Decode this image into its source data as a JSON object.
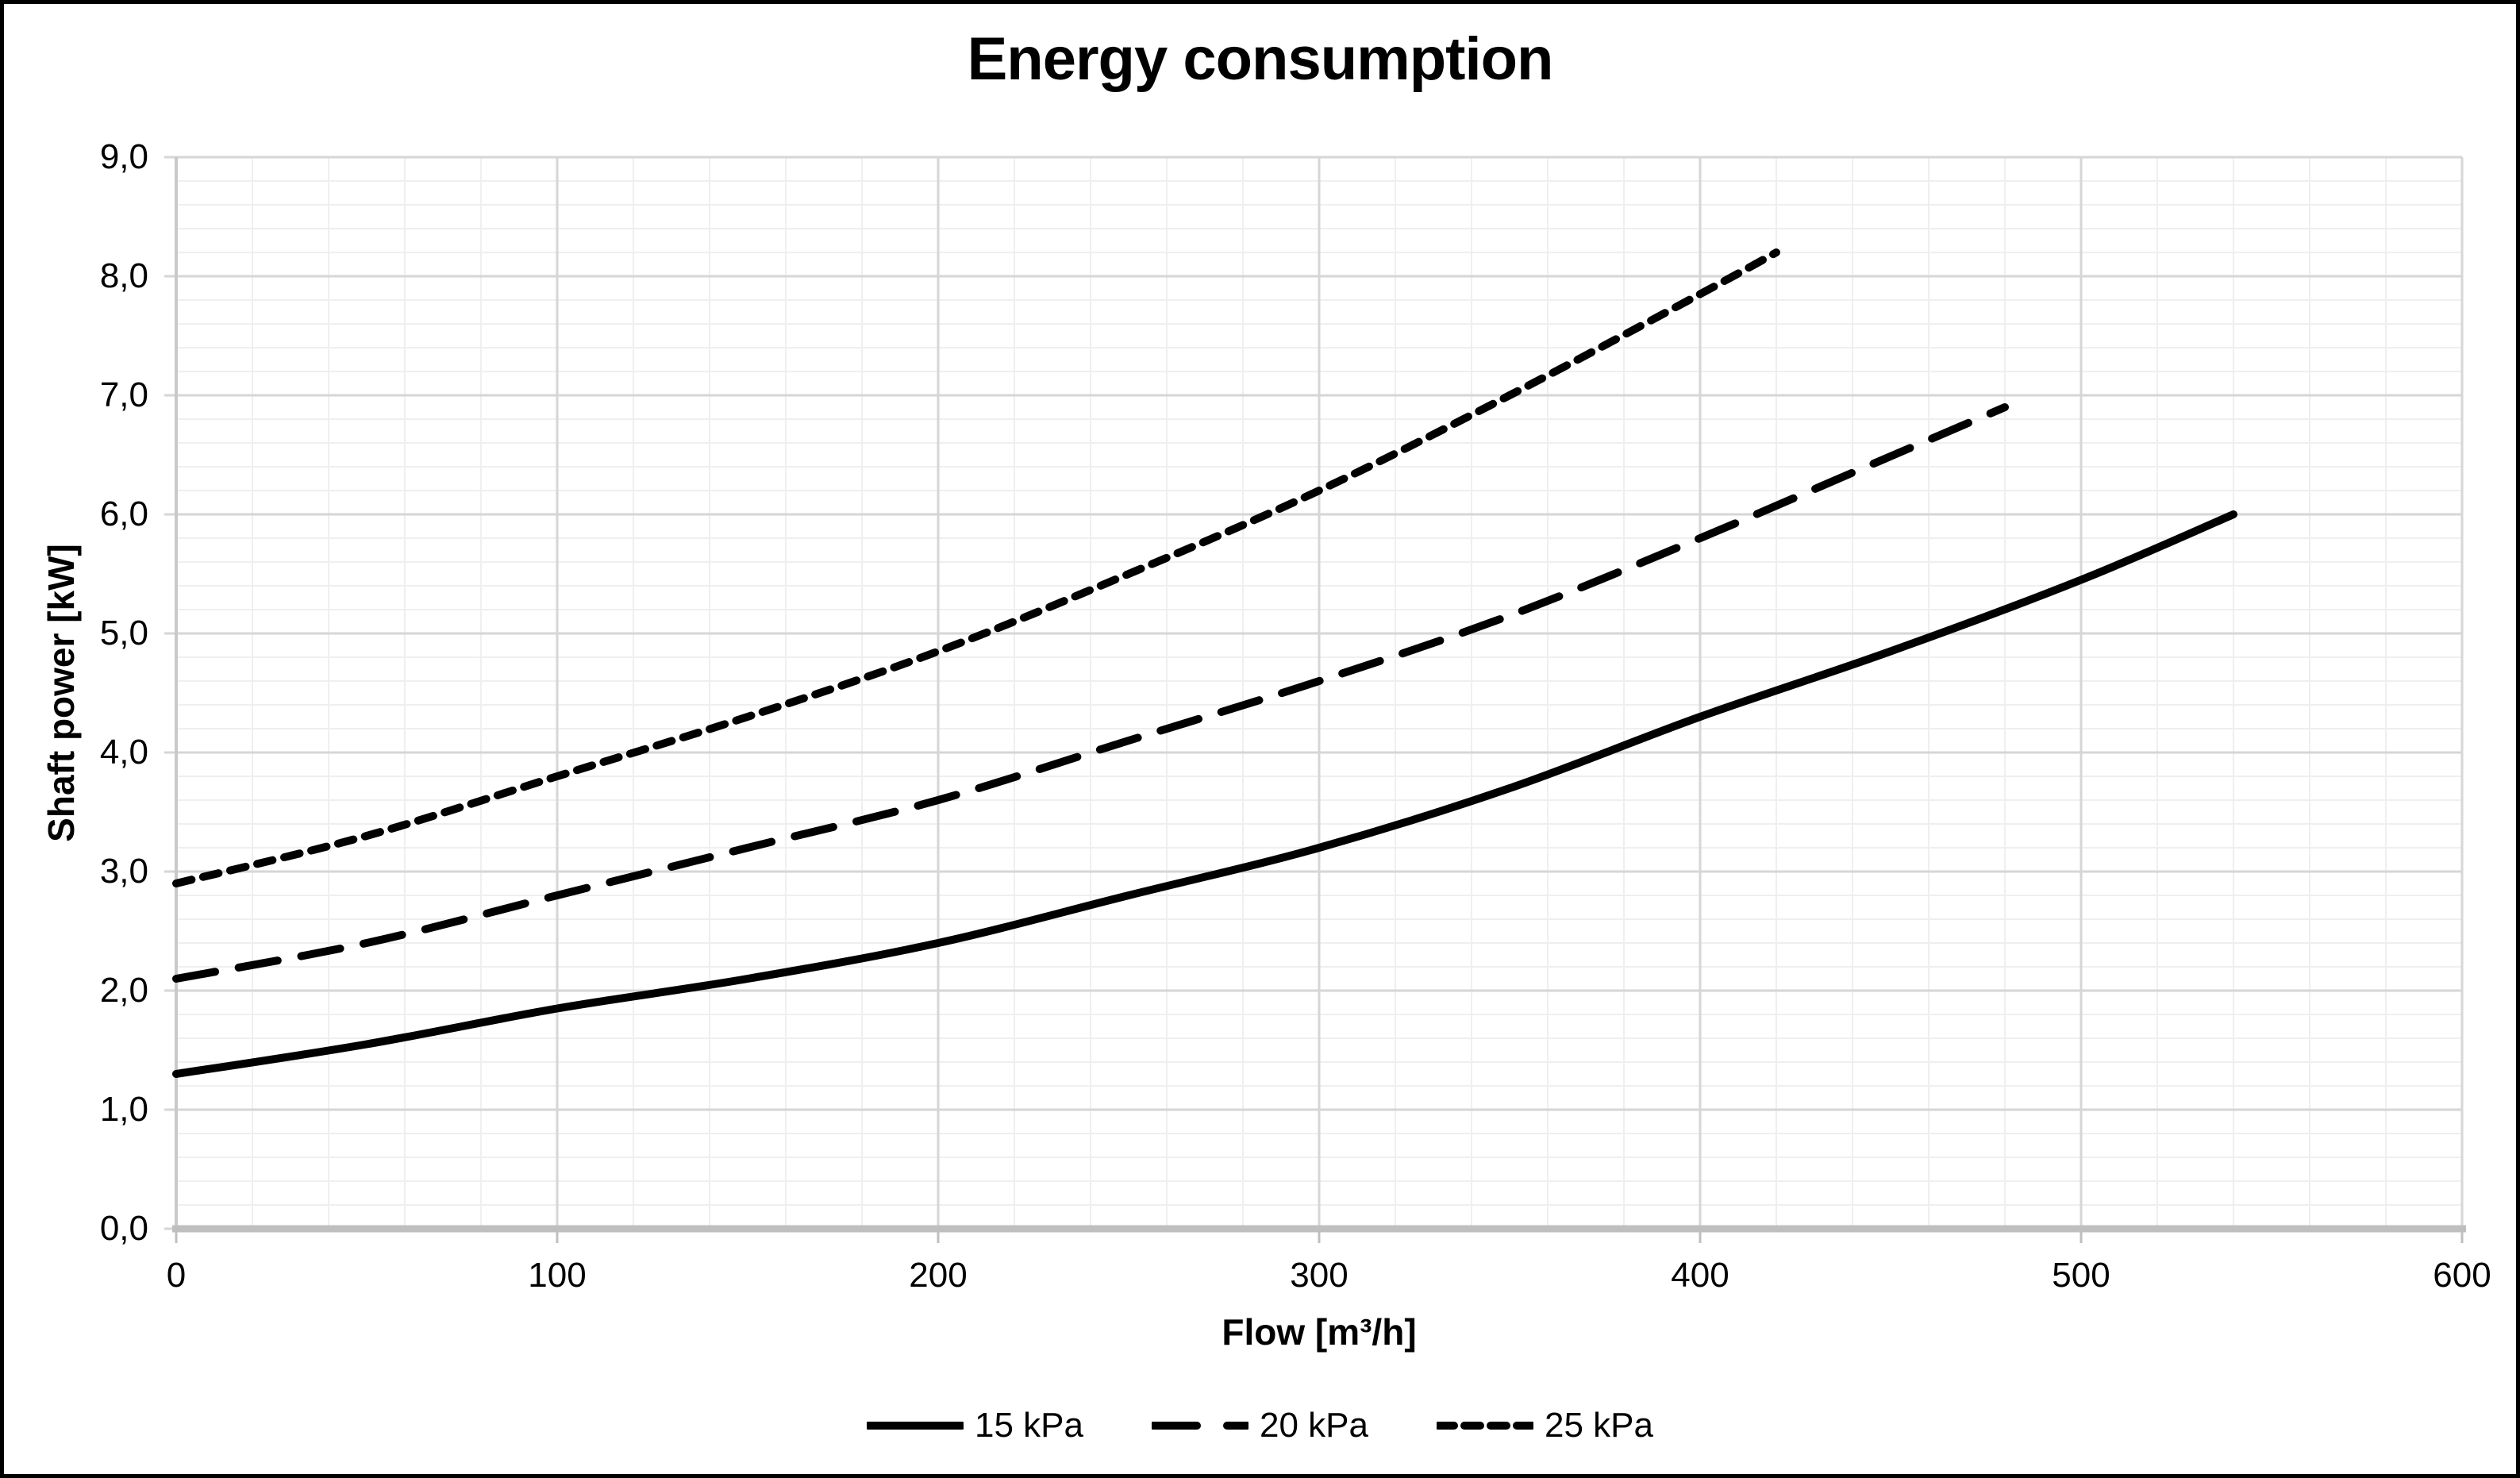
{
  "chart_data": {
    "type": "line",
    "title": "Energy consumption",
    "xlabel": "Flow [m³/h]",
    "ylabel": "Shaft power [kW]",
    "xlim": [
      0,
      600
    ],
    "ylim": [
      0,
      9
    ],
    "x_major_step": 100,
    "x_minor_step": 20,
    "y_major_step": 1,
    "y_minor_step": 0.2,
    "grid": true,
    "legend_position": "bottom",
    "x_ticks": [
      {
        "value": 0,
        "label": "0"
      },
      {
        "value": 100,
        "label": "100"
      },
      {
        "value": 200,
        "label": "200"
      },
      {
        "value": 300,
        "label": "300"
      },
      {
        "value": 400,
        "label": "400"
      },
      {
        "value": 500,
        "label": "500"
      },
      {
        "value": 600,
        "label": "600"
      }
    ],
    "y_ticks": [
      {
        "value": 0,
        "label": "0,0"
      },
      {
        "value": 1,
        "label": "1,0"
      },
      {
        "value": 2,
        "label": "2,0"
      },
      {
        "value": 3,
        "label": "3,0"
      },
      {
        "value": 4,
        "label": "4,0"
      },
      {
        "value": 5,
        "label": "5,0"
      },
      {
        "value": 6,
        "label": "6,0"
      },
      {
        "value": 7,
        "label": "7,0"
      },
      {
        "value": 8,
        "label": "8,0"
      },
      {
        "value": 9,
        "label": "9,0"
      }
    ],
    "series": [
      {
        "name": "15 kPa",
        "style": "solid",
        "color": "#000000",
        "x": [
          0,
          50,
          100,
          150,
          200,
          250,
          300,
          350,
          400,
          450,
          500,
          540
        ],
        "y": [
          1.3,
          1.55,
          1.85,
          2.1,
          2.4,
          2.8,
          3.2,
          3.7,
          4.3,
          4.85,
          5.45,
          6.0
        ]
      },
      {
        "name": "20 kPa",
        "style": "dashed",
        "color": "#000000",
        "x": [
          0,
          50,
          100,
          150,
          200,
          250,
          300,
          350,
          400,
          440,
          480
        ],
        "y": [
          2.1,
          2.4,
          2.8,
          3.2,
          3.6,
          4.1,
          4.6,
          5.15,
          5.8,
          6.35,
          6.9
        ]
      },
      {
        "name": "25 kPa",
        "style": "dotted",
        "color": "#000000",
        "x": [
          0,
          50,
          100,
          150,
          200,
          250,
          300,
          350,
          400,
          420
        ],
        "y": [
          2.9,
          3.3,
          3.8,
          4.3,
          4.85,
          5.5,
          6.2,
          7.0,
          7.85,
          8.2
        ]
      }
    ],
    "colors": {
      "line": "#000000",
      "grid_major": "#d6d6d6",
      "grid_minor": "#efefef",
      "axis": "#bfbfbf",
      "background": "#ffffff",
      "border": "#000000"
    }
  }
}
